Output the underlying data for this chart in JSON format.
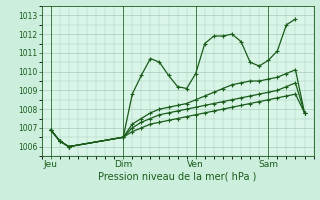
{
  "bg_color": "#cceedd",
  "plot_bg_color": "#d8f5e8",
  "grid_color": "#aaccbb",
  "line_color": "#1a5c1a",
  "title": "Pression niveau de la mer( hPa )",
  "ylim": [
    1005.5,
    1013.5
  ],
  "yticks": [
    1006,
    1007,
    1008,
    1009,
    1010,
    1011,
    1012,
    1013
  ],
  "day_labels": [
    "Jeu",
    "Dim",
    "Ven",
    "Sam"
  ],
  "day_offsets_hours": [
    0,
    48,
    96,
    144
  ],
  "series1_hours": [
    0,
    6,
    12,
    48,
    54,
    60,
    66,
    72,
    78,
    84,
    90,
    96,
    102,
    108,
    114,
    120,
    126,
    132,
    138,
    144,
    150,
    156,
    162
  ],
  "series1_vals": [
    1006.9,
    1006.3,
    1006.0,
    1006.5,
    1008.8,
    1009.8,
    1010.7,
    1010.5,
    1009.8,
    1009.2,
    1009.1,
    1009.9,
    1011.5,
    1011.9,
    1011.9,
    1012.0,
    1011.6,
    1010.5,
    1010.3,
    1010.6,
    1011.1,
    1012.5,
    1012.8
  ],
  "series2_hours": [
    0,
    6,
    12,
    48,
    54,
    60,
    66,
    72,
    78,
    84,
    90,
    96,
    102,
    108,
    114,
    120,
    126,
    132,
    138,
    144,
    150,
    156,
    162,
    168
  ],
  "series2_vals": [
    1006.9,
    1006.3,
    1006.0,
    1006.5,
    1006.8,
    1007.0,
    1007.2,
    1007.3,
    1007.4,
    1007.5,
    1007.6,
    1007.7,
    1007.8,
    1007.9,
    1008.0,
    1008.1,
    1008.2,
    1008.3,
    1008.4,
    1008.5,
    1008.6,
    1008.7,
    1008.8,
    1007.8
  ],
  "series3_hours": [
    0,
    6,
    12,
    48,
    54,
    60,
    66,
    72,
    78,
    84,
    90,
    96,
    102,
    108,
    114,
    120,
    126,
    132,
    138,
    144,
    150,
    156,
    162,
    168
  ],
  "series3_vals": [
    1006.9,
    1006.3,
    1006.0,
    1006.5,
    1007.0,
    1007.3,
    1007.5,
    1007.7,
    1007.8,
    1007.9,
    1008.0,
    1008.1,
    1008.2,
    1008.3,
    1008.4,
    1008.5,
    1008.6,
    1008.7,
    1008.8,
    1008.9,
    1009.0,
    1009.2,
    1009.4,
    1007.8
  ],
  "series4_hours": [
    0,
    6,
    12,
    48,
    54,
    60,
    66,
    72,
    78,
    84,
    90,
    96,
    102,
    108,
    114,
    120,
    126,
    132,
    138,
    144,
    150,
    156,
    162,
    168
  ],
  "series4_vals": [
    1006.9,
    1006.3,
    1006.0,
    1006.5,
    1007.2,
    1007.5,
    1007.8,
    1008.0,
    1008.1,
    1008.2,
    1008.3,
    1008.5,
    1008.7,
    1008.9,
    1009.1,
    1009.3,
    1009.4,
    1009.5,
    1009.5,
    1009.6,
    1009.7,
    1009.9,
    1010.1,
    1007.8
  ]
}
